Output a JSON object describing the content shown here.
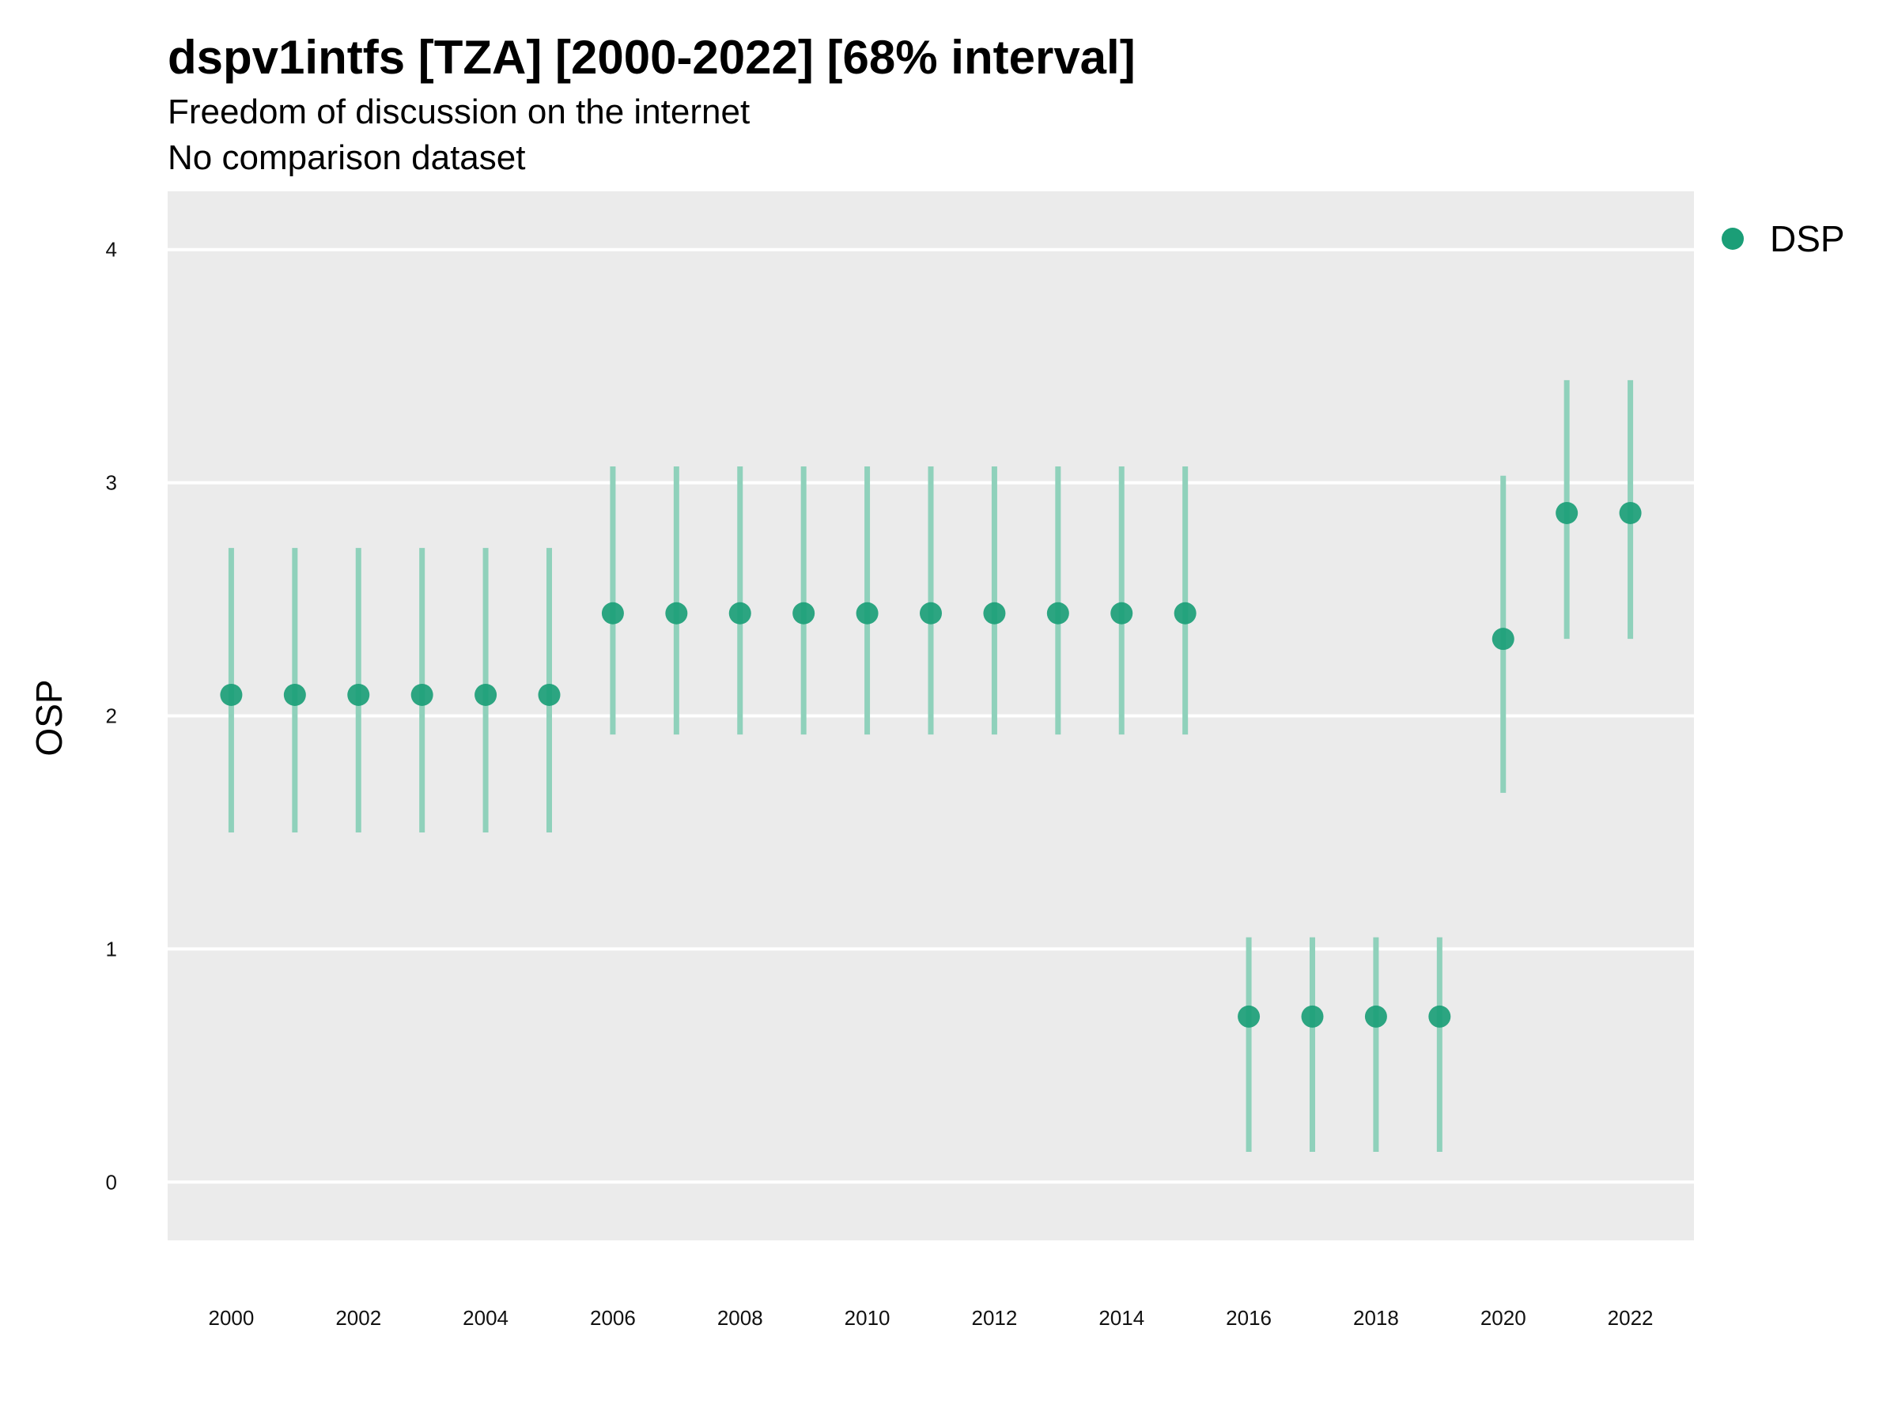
{
  "chart_data": {
    "type": "scatter",
    "title": "dspv1intfs [TZA] [2000-2022] [68% interval]",
    "subtitle": "Freedom of discussion on the internet",
    "caption": "No comparison dataset",
    "xlabel": "",
    "ylabel": "OSP",
    "xlim": [
      1999,
      2023
    ],
    "ylim": [
      -0.25,
      4.25
    ],
    "x_ticks": [
      "2000",
      "2002",
      "2004",
      "2006",
      "2008",
      "2010",
      "2012",
      "2014",
      "2016",
      "2018",
      "2020",
      "2022"
    ],
    "y_ticks": [
      "0",
      "1",
      "2",
      "3",
      "4"
    ],
    "grid": true,
    "legend_position": "top-right",
    "colors": {
      "point": "#1b9e77",
      "interval": "#8fd1bb",
      "panel": "#ebebeb",
      "grid": "#ffffff"
    },
    "series": [
      {
        "name": "DSP",
        "x": [
          2000,
          2001,
          2002,
          2003,
          2004,
          2005,
          2006,
          2007,
          2008,
          2009,
          2010,
          2011,
          2012,
          2013,
          2014,
          2015,
          2016,
          2017,
          2018,
          2019,
          2020,
          2021,
          2022
        ],
        "y": [
          2.09,
          2.09,
          2.09,
          2.09,
          2.09,
          2.09,
          2.44,
          2.44,
          2.44,
          2.44,
          2.44,
          2.44,
          2.44,
          2.44,
          2.44,
          2.44,
          0.71,
          0.71,
          0.71,
          0.71,
          2.33,
          2.87,
          2.87
        ],
        "lower": [
          1.5,
          1.5,
          1.5,
          1.5,
          1.5,
          1.5,
          1.92,
          1.92,
          1.92,
          1.92,
          1.92,
          1.92,
          1.92,
          1.92,
          1.92,
          1.92,
          0.13,
          0.13,
          0.13,
          0.13,
          1.67,
          2.33,
          2.33
        ],
        "upper": [
          2.72,
          2.72,
          2.72,
          2.72,
          2.72,
          2.72,
          3.07,
          3.07,
          3.07,
          3.07,
          3.07,
          3.07,
          3.07,
          3.07,
          3.07,
          3.07,
          1.05,
          1.05,
          1.05,
          1.05,
          3.03,
          3.44,
          3.44
        ]
      }
    ]
  }
}
